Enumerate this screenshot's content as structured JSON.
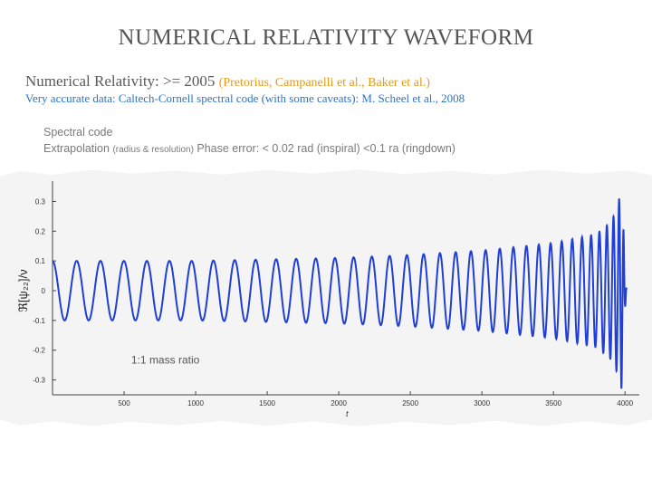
{
  "slide": {
    "title": "NUMERICAL RELATIVITY WAVEFORM",
    "line1_main": "Numerical Relativity: >= 2005 ",
    "line1_cite": "(Pretorius, Campanelli et al., Baker et al.)",
    "line2": "Very accurate data: Caltech-Cornell spectral code (with some caveats): M. Scheel et al., 2008",
    "note1": "Spectral code",
    "note2_main": "Extrapolation ",
    "note2_small": "(radius & resolution)",
    "note2_rest": "  Phase error: < 0.02 rad (inspiral) <0.1     ra (ringdown)"
  },
  "colors": {
    "title": "#555555",
    "citation": "#e79a17",
    "blue_text": "#2e73c6",
    "waveform": "#1f3fd6"
  },
  "chart_data": {
    "type": "line",
    "xlabel": "t",
    "ylabel": "ℜ[ψ₂₂]/ν",
    "annotation": "1:1 mass ratio",
    "xlim": [
      0,
      4100
    ],
    "ylim": [
      -0.35,
      0.35
    ],
    "xticks": [
      500,
      1000,
      1500,
      2000,
      2500,
      3000,
      3500,
      4000
    ],
    "yticks": [
      -0.3,
      -0.2,
      -0.1,
      0,
      0.1,
      0.2,
      0.3
    ],
    "ytick_labels": [
      "-0.3",
      "-0.2",
      "-0.1",
      "0",
      "0.1",
      "0.2",
      "0.3"
    ],
    "series": [
      {
        "description_points": "envelope and cycle markers of the inspiral-merger-ringdown waveform",
        "x": [
          0,
          500,
          1000,
          1500,
          2000,
          2500,
          3000,
          3500,
          3800,
          3900,
          3940,
          3960,
          3975,
          3990,
          4000,
          4010
        ],
        "amplitude": [
          0.1,
          0.1,
          0.1,
          0.105,
          0.11,
          0.12,
          0.135,
          0.16,
          0.19,
          0.23,
          0.27,
          0.31,
          0.33,
          0.2,
          0.06,
          0.01
        ],
        "phase_peaks": 36
      }
    ]
  }
}
